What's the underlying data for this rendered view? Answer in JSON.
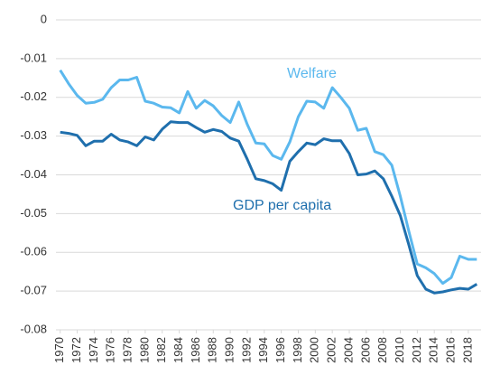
{
  "chart_data": {
    "type": "line",
    "x": [
      1970,
      1971,
      1972,
      1973,
      1974,
      1975,
      1976,
      1977,
      1978,
      1979,
      1980,
      1981,
      1982,
      1983,
      1984,
      1985,
      1986,
      1987,
      1988,
      1989,
      1990,
      1991,
      1992,
      1993,
      1994,
      1995,
      1996,
      1997,
      1998,
      1999,
      2000,
      2001,
      2002,
      2003,
      2004,
      2005,
      2006,
      2007,
      2008,
      2009,
      2010,
      2011,
      2012,
      2013,
      2014,
      2015,
      2016,
      2017,
      2018,
      2019
    ],
    "series": [
      {
        "name": "Welfare",
        "color": "#5bb8ee",
        "values": [
          -0.013,
          -0.0165,
          -0.0195,
          -0.0215,
          -0.0213,
          -0.0205,
          -0.0175,
          -0.0155,
          -0.0155,
          -0.0148,
          -0.021,
          -0.0215,
          -0.0225,
          -0.0227,
          -0.024,
          -0.0185,
          -0.0228,
          -0.0208,
          -0.0222,
          -0.0247,
          -0.0265,
          -0.0212,
          -0.027,
          -0.0318,
          -0.032,
          -0.035,
          -0.036,
          -0.0315,
          -0.025,
          -0.021,
          -0.0212,
          -0.0228,
          -0.0175,
          -0.02,
          -0.0228,
          -0.0285,
          -0.028,
          -0.034,
          -0.0348,
          -0.0375,
          -0.0455,
          -0.0545,
          -0.063,
          -0.064,
          -0.0655,
          -0.068,
          -0.0665,
          -0.061,
          -0.0618,
          -0.0618
        ]
      },
      {
        "name": "GDP per capita",
        "color": "#1f6fad",
        "values": [
          -0.029,
          -0.0293,
          -0.0298,
          -0.0325,
          -0.0313,
          -0.0313,
          -0.0295,
          -0.031,
          -0.0315,
          -0.0325,
          -0.0302,
          -0.031,
          -0.0282,
          -0.0263,
          -0.0265,
          -0.0265,
          -0.0278,
          -0.029,
          -0.0283,
          -0.0288,
          -0.0305,
          -0.0313,
          -0.036,
          -0.041,
          -0.0415,
          -0.0423,
          -0.044,
          -0.0365,
          -0.034,
          -0.0318,
          -0.0322,
          -0.0307,
          -0.0312,
          -0.0312,
          -0.0345,
          -0.04,
          -0.0398,
          -0.039,
          -0.041,
          -0.0455,
          -0.0505,
          -0.058,
          -0.066,
          -0.0695,
          -0.0705,
          -0.0702,
          -0.0697,
          -0.0693,
          -0.0695,
          -0.0682
        ]
      }
    ],
    "xlim": [
      1969.5,
      2019.5
    ],
    "xticks": [
      1970,
      1972,
      1974,
      1976,
      1978,
      1980,
      1982,
      1984,
      1986,
      1988,
      1990,
      1992,
      1994,
      1996,
      1998,
      2000,
      2002,
      2004,
      2006,
      2008,
      2010,
      2012,
      2014,
      2016,
      2018
    ],
    "ylim": [
      -0.08,
      0
    ],
    "yticks": [
      0,
      -0.01,
      -0.02,
      -0.03,
      -0.04,
      -0.05,
      -0.06,
      -0.07,
      -0.08
    ],
    "grid": true
  }
}
